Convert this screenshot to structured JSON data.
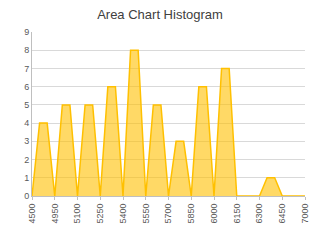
{
  "chart_data": {
    "type": "area",
    "title": "Area Chart Histogram",
    "categories": [
      "4500",
      null,
      null,
      "4950",
      null,
      null,
      "5100",
      null,
      null,
      "5250",
      null,
      null,
      "5400",
      null,
      null,
      "5550",
      null,
      null,
      "5700",
      null,
      null,
      "5850",
      null,
      null,
      "6000",
      null,
      null,
      "6150",
      null,
      null,
      "6300",
      null,
      null,
      "6450",
      null,
      null,
      "7000"
    ],
    "values": [
      0,
      4,
      4,
      0,
      5,
      5,
      0,
      5,
      5,
      0,
      6,
      6,
      0,
      8,
      8,
      0,
      5,
      5,
      0,
      3,
      3,
      0,
      6,
      6,
      0,
      7,
      7,
      0,
      0,
      0,
      0,
      1,
      1,
      0,
      0,
      0,
      0
    ],
    "color": "#ffc000",
    "ylim": [
      0,
      9
    ],
    "yticks": [
      0,
      1,
      2,
      3,
      4,
      5,
      6,
      7,
      8,
      9
    ],
    "grid": true
  }
}
